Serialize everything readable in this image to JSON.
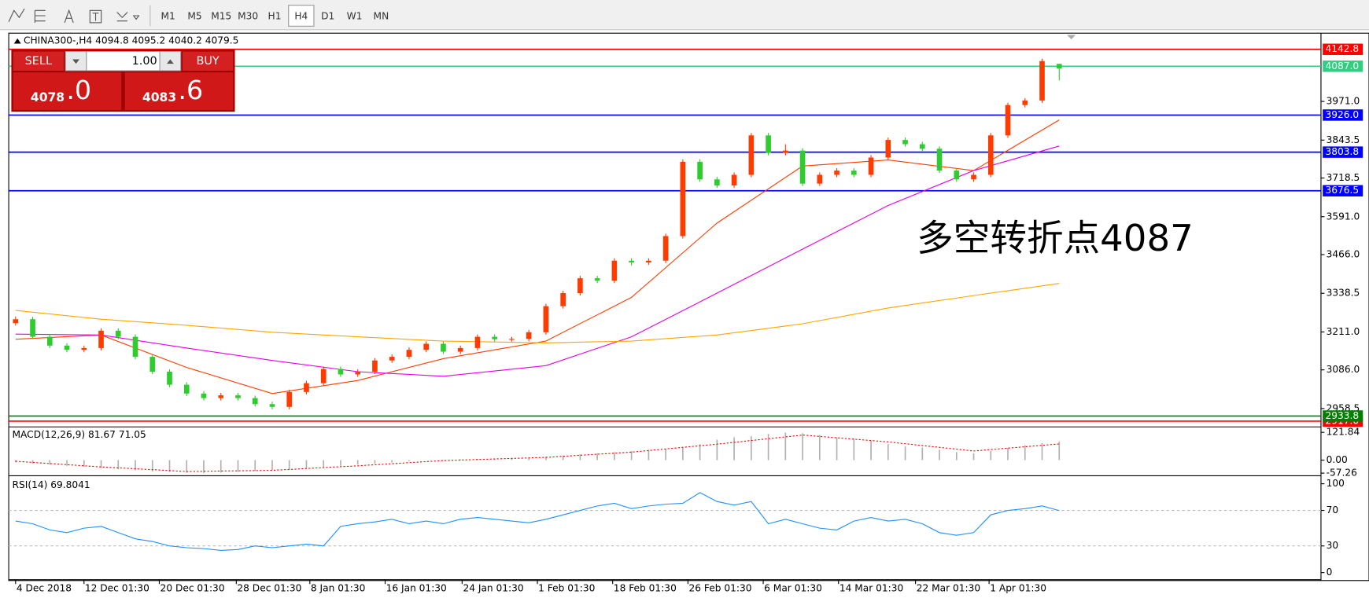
{
  "toolbar": {
    "buttons": [
      "M1",
      "M5",
      "M15",
      "M30",
      "H1",
      "H4",
      "D1",
      "W1",
      "MN"
    ],
    "selected": "H4"
  },
  "trade_panel": {
    "sell": "SELL",
    "buy": "BUY",
    "volume": "1.00",
    "bid_main": "4078",
    "bid_tail": ".0",
    "ask_main": "4083",
    "ask_tail": ".6"
  },
  "chart_data": {
    "type": "candlestick",
    "title": "CHINA300-,H4  4094.8 4095.2 4040.2 4079.5",
    "up_color": "#ff3c00",
    "down_color": "#2ecc2e",
    "xlim": [
      -0.4,
      76.3
    ],
    "xticks": [
      {
        "value": 0,
        "label": "4 Dec 2018"
      },
      {
        "value": 4,
        "label": "12 Dec 01:30"
      },
      {
        "value": 8.4,
        "label": "20 Dec 01:30"
      },
      {
        "value": 12.9,
        "label": "28 Dec 01:30"
      },
      {
        "value": 17.2,
        "label": "8 Jan 01:30"
      },
      {
        "value": 21.6,
        "label": "16 Jan 01:30"
      },
      {
        "value": 26.1,
        "label": "24 Jan 01:30"
      },
      {
        "value": 30.5,
        "label": "1 Feb 01:30"
      },
      {
        "value": 34.9,
        "label": "18 Feb 01:30"
      },
      {
        "value": 39.3,
        "label": "26 Feb 01:30"
      },
      {
        "value": 43.7,
        "label": "6 Mar 01:30"
      },
      {
        "value": 48.1,
        "label": "14 Mar 01:30"
      },
      {
        "value": 52.6,
        "label": "22 Mar 01:30"
      },
      {
        "value": 56.9,
        "label": "1 Apr 01:30"
      }
    ],
    "ylim": [
      2898,
      4196
    ],
    "yticks": [
      {
        "value": 3971,
        "label": "3971.0"
      },
      3843.5,
      3718.5,
      {
        "value": 3591,
        "label": "3591.0"
      },
      {
        "value": 3466,
        "label": "3466.0"
      },
      3338.5,
      {
        "value": 3211,
        "label": "3211.0"
      },
      {
        "value": 3086,
        "label": "3086.0"
      },
      2958.5
    ],
    "levels": [
      {
        "value": 4142.8,
        "label": "4142.8",
        "color": "#ff0000"
      },
      {
        "value": 4087,
        "label": "4087.0",
        "color": "#32cd80"
      },
      {
        "value": 3926,
        "label": "3926.0",
        "color": "#0000ff"
      },
      {
        "value": 3803.8,
        "label": "3803.8",
        "color": "#0000ff"
      },
      {
        "value": 3676.5,
        "label": "3676.5",
        "color": "#0000ff"
      },
      {
        "value": 2917,
        "label": "2917.0",
        "color": "#ff0000"
      },
      {
        "value": 2933.8,
        "label": "2933.8",
        "color": "#008000"
      }
    ],
    "candles": [
      [
        3240,
        3262,
        3232,
        3253
      ],
      [
        3253,
        3261,
        3187,
        3195
      ],
      [
        3195,
        3203,
        3158,
        3166
      ],
      [
        3166,
        3174,
        3144,
        3152
      ],
      [
        3152,
        3166,
        3144,
        3158
      ],
      [
        3158,
        3223,
        3150,
        3215
      ],
      [
        3215,
        3223,
        3187,
        3195
      ],
      [
        3195,
        3203,
        3121,
        3129
      ],
      [
        3129,
        3137,
        3072,
        3080
      ],
      [
        3080,
        3088,
        3029,
        3037
      ],
      [
        3037,
        3045,
        3000,
        3008
      ],
      [
        3008,
        3016,
        2985,
        2993
      ],
      [
        2993,
        3010,
        2985,
        3002
      ],
      [
        3002,
        3010,
        2985,
        2993
      ],
      [
        2993,
        3001,
        2965,
        2973
      ],
      [
        2973,
        2981,
        2956,
        2964
      ],
      [
        2964,
        3021,
        2956,
        3013
      ],
      [
        3013,
        3050,
        3005,
        3042
      ],
      [
        3042,
        3097,
        3034,
        3089
      ],
      [
        3089,
        3097,
        3063,
        3071
      ],
      [
        3071,
        3088,
        3063,
        3080
      ],
      [
        3080,
        3125,
        3072,
        3117
      ],
      [
        3117,
        3137,
        3109,
        3129
      ],
      [
        3129,
        3160,
        3121,
        3152
      ],
      [
        3152,
        3180,
        3144,
        3172
      ],
      [
        3172,
        3180,
        3138,
        3146
      ],
      [
        3146,
        3166,
        3138,
        3158
      ],
      [
        3158,
        3203,
        3150,
        3195
      ],
      [
        3195,
        3203,
        3179,
        3187
      ],
      [
        3187,
        3195,
        3179,
        3188
      ],
      [
        3188,
        3218,
        3180,
        3210
      ],
      [
        3210,
        3304,
        3202,
        3296
      ],
      [
        3296,
        3347,
        3288,
        3339
      ],
      [
        3339,
        3396,
        3331,
        3388
      ],
      [
        3388,
        3396,
        3372,
        3380
      ],
      [
        3380,
        3454,
        3372,
        3446
      ],
      [
        3446,
        3454,
        3430,
        3440
      ],
      [
        3440,
        3454,
        3432,
        3446
      ],
      [
        3446,
        3535,
        3438,
        3527
      ],
      [
        3527,
        3780,
        3519,
        3772
      ],
      [
        3772,
        3780,
        3706,
        3714
      ],
      [
        3714,
        3722,
        3686,
        3694
      ],
      [
        3694,
        3737,
        3686,
        3729
      ],
      [
        3729,
        3867,
        3721,
        3859
      ],
      [
        3859,
        3867,
        3793,
        3801
      ],
      [
        3801,
        3830,
        3793,
        3809
      ],
      [
        3809,
        3817,
        3692,
        3700
      ],
      [
        3700,
        3737,
        3692,
        3729
      ],
      [
        3729,
        3751,
        3721,
        3743
      ],
      [
        3743,
        3751,
        3721,
        3729
      ],
      [
        3729,
        3794,
        3721,
        3786
      ],
      [
        3786,
        3852,
        3778,
        3844
      ],
      [
        3844,
        3852,
        3822,
        3830
      ],
      [
        3830,
        3838,
        3807,
        3815
      ],
      [
        3815,
        3823,
        3735,
        3743
      ],
      [
        3743,
        3751,
        3706,
        3714
      ],
      [
        3714,
        3737,
        3706,
        3729
      ],
      [
        3729,
        3867,
        3721,
        3859
      ],
      [
        3859,
        3967,
        3851,
        3959
      ],
      [
        3959,
        3982,
        3951,
        3974
      ],
      [
        3974,
        4112,
        3966,
        4104
      ],
      [
        4094.8,
        4095.2,
        4040.2,
        4079.5
      ]
    ],
    "ma_lines": [
      {
        "color": "#ff3c00",
        "x": [
          0,
          5,
          10,
          15,
          20,
          25,
          31,
          36,
          41,
          46,
          51,
          56,
          61
        ],
        "values": [
          3187,
          3201,
          3094,
          3008,
          3051,
          3123,
          3181,
          3325,
          3570,
          3758,
          3778,
          3743,
          3910
        ]
      },
      {
        "color": "#e600e6",
        "x": [
          0,
          5,
          10,
          15,
          20,
          25,
          31,
          36,
          41,
          46,
          51,
          56,
          61
        ],
        "values": [
          3204,
          3201,
          3158,
          3117,
          3080,
          3065,
          3100,
          3195,
          3339,
          3484,
          3628,
          3743,
          3824
        ]
      },
      {
        "color": "#ffa500",
        "x": [
          0,
          5,
          10,
          15,
          20,
          25,
          31,
          36,
          41,
          46,
          51,
          56,
          61
        ],
        "values": [
          3282,
          3253,
          3233,
          3210,
          3195,
          3181,
          3175,
          3181,
          3201,
          3238,
          3290,
          3331,
          3371
        ]
      }
    ],
    "annotation": "多空转折点4087",
    "annotation_color": "#ff0000",
    "macd": {
      "title": "MACD(12,26,9) 81.67 71.05",
      "ylim": [
        -65,
        142
      ],
      "yticks": [
        121.84,
        {
          "value": 0,
          "label": "0.00"
        },
        -57.26
      ],
      "histogram_color": "#b0b0b0",
      "histogram": [
        -10,
        -15,
        -20,
        -25,
        -30,
        -35,
        -40,
        -45,
        -50,
        -52,
        -55,
        -57,
        -55,
        -52,
        -48,
        -45,
        -40,
        -35,
        -30,
        -25,
        -20,
        -15,
        -10,
        -5,
        0,
        2,
        4,
        5,
        6,
        8,
        10,
        15,
        20,
        25,
        30,
        35,
        40,
        45,
        50,
        55,
        70,
        90,
        100,
        105,
        115,
        121,
        118,
        110,
        100,
        95,
        85,
        70,
        60,
        55,
        45,
        35,
        30,
        40,
        55,
        65,
        75,
        81.67
      ],
      "signal_color": "#ff0000",
      "signal": {
        "x": [
          0,
          5,
          10,
          15,
          20,
          25,
          31,
          36,
          41,
          46,
          51,
          56,
          61
        ],
        "values": [
          -5,
          -30,
          -50,
          -45,
          -25,
          -2,
          12,
          35,
          70,
          110,
          80,
          40,
          71.05
        ]
      }
    },
    "rsi": {
      "title": "RSI(14) 69.8041",
      "ylim": [
        -7,
        108
      ],
      "yticks": [
        100,
        70,
        30,
        0
      ],
      "dashed_levels": [
        70,
        30
      ],
      "color": "#1e90ff",
      "values": [
        58,
        55,
        48,
        45,
        50,
        52,
        45,
        38,
        35,
        30,
        28,
        27,
        25,
        26,
        30,
        28,
        30,
        32,
        30,
        52,
        55,
        57,
        60,
        55,
        58,
        55,
        60,
        62,
        60,
        58,
        56,
        60,
        65,
        70,
        75,
        78,
        72,
        75,
        77,
        78,
        90,
        80,
        76,
        80,
        55,
        60,
        55,
        50,
        48,
        58,
        62,
        58,
        60,
        55,
        45,
        42,
        45,
        65,
        70,
        72,
        75,
        69.8
      ]
    }
  }
}
